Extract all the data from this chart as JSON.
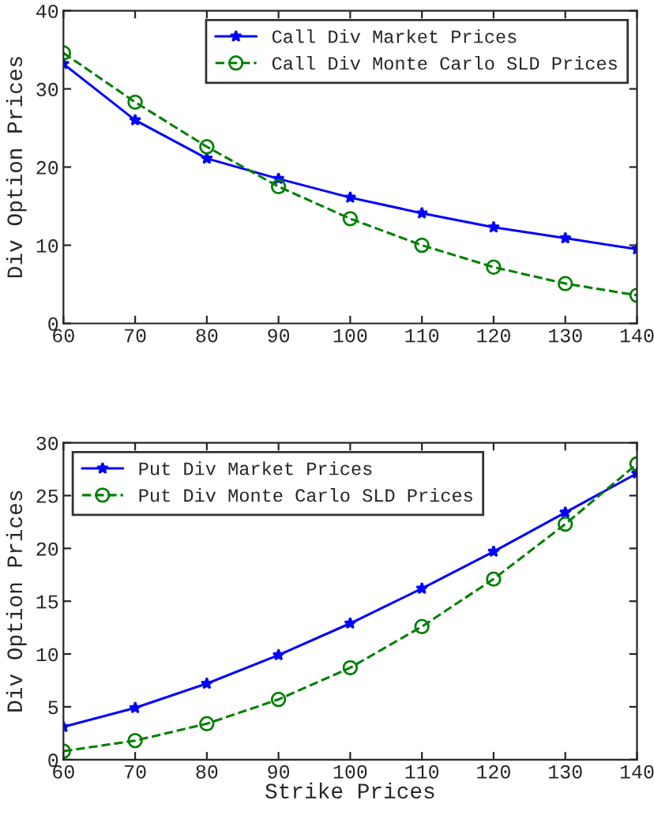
{
  "chart_data": [
    {
      "type": "line",
      "ylabel": "Div Option Prices",
      "x": [
        60,
        70,
        80,
        90,
        100,
        110,
        120,
        130,
        140
      ],
      "xlim": [
        60,
        140
      ],
      "xticks": [
        60,
        70,
        80,
        90,
        100,
        110,
        120,
        130,
        140
      ],
      "ylim": [
        0,
        40
      ],
      "yticks": [
        0,
        10,
        20,
        30,
        40
      ],
      "grid": false,
      "legend": "top right",
      "series": [
        {
          "name": "Call Div Market Prices",
          "color": "#0000ff",
          "marker": "star",
          "line_style": "solid",
          "values": [
            33.2,
            26.0,
            21.1,
            18.5,
            16.1,
            14.1,
            12.3,
            10.9,
            9.5
          ]
        },
        {
          "name": "Call Div Monte Carlo SLD Prices",
          "color": "#008000",
          "marker": "circle",
          "line_style": "dashed",
          "values": [
            34.6,
            28.3,
            22.6,
            17.5,
            13.4,
            10.0,
            7.2,
            5.1,
            3.6
          ]
        }
      ]
    },
    {
      "type": "line",
      "xlabel": "Strike Prices",
      "ylabel": "Div Option Prices",
      "x": [
        60,
        70,
        80,
        90,
        100,
        110,
        120,
        130,
        140
      ],
      "xlim": [
        60,
        140
      ],
      "xticks": [
        60,
        70,
        80,
        90,
        100,
        110,
        120,
        130,
        140
      ],
      "ylim": [
        0,
        30
      ],
      "yticks": [
        0,
        5,
        10,
        15,
        20,
        25,
        30
      ],
      "grid": false,
      "legend": "top left",
      "series": [
        {
          "name": "Put Div Market Prices",
          "color": "#0000ff",
          "marker": "star",
          "line_style": "solid",
          "values": [
            3.1,
            4.9,
            7.2,
            9.9,
            12.9,
            16.2,
            19.7,
            23.4,
            27.1
          ]
        },
        {
          "name": "Put Div Monte Carlo SLD Prices",
          "color": "#008000",
          "marker": "circle",
          "line_style": "dashed",
          "values": [
            0.8,
            1.8,
            3.4,
            5.7,
            8.7,
            12.6,
            17.1,
            22.3,
            28.0
          ]
        }
      ]
    }
  ]
}
